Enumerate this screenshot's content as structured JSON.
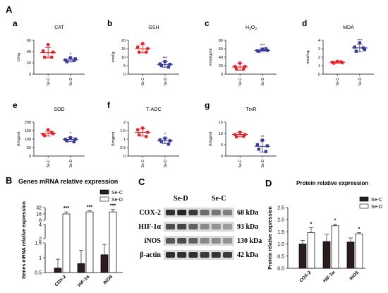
{
  "panel_letters": {
    "A": "A",
    "B": "B",
    "C": "C",
    "D": "D"
  },
  "chart_data": [
    {
      "letter": "a",
      "title": "CAT",
      "type": "scatter",
      "ylabel": "U/mg",
      "ylim": [
        0,
        60
      ],
      "yticks": [
        0,
        20,
        40,
        60
      ],
      "categories": [
        "Se-C",
        "Se-D"
      ],
      "series": [
        {
          "name": "Se-C",
          "color": "#e8242b",
          "points": [
            52,
            41,
            30,
            30,
            39
          ],
          "mean": 38,
          "sd": 9
        },
        {
          "name": "Se-D",
          "color": "#3a3a9a",
          "points": [
            29,
            25,
            22,
            24,
            27
          ],
          "mean": 25,
          "sd": 3.5
        }
      ],
      "significance": {
        "Se-D": "*"
      }
    },
    {
      "letter": "b",
      "title": "GSH",
      "type": "scatter",
      "ylabel": "umol/g",
      "ylim": [
        0,
        20
      ],
      "yticks": [
        0,
        5,
        10,
        15,
        20
      ],
      "categories": [
        "Se-C",
        "Se-D"
      ],
      "series": [
        {
          "name": "Se-C",
          "color": "#e8242b",
          "points": [
            18,
            16,
            13,
            13,
            15
          ],
          "mean": 15,
          "sd": 2.4
        },
        {
          "name": "Se-D",
          "color": "#3a3a9a",
          "points": [
            7.5,
            6,
            5,
            4.2,
            5.8
          ],
          "mean": 5.7,
          "sd": 1.6
        }
      ],
      "significance": {
        "Se-D": "***"
      }
    },
    {
      "letter": "c",
      "title": "H2O2",
      "type": "scatter",
      "ylabel": "mmol/gprot",
      "ylim": [
        0,
        80
      ],
      "yticks": [
        0,
        20,
        40,
        60,
        80
      ],
      "categories": [
        "Se-C",
        "Se-D"
      ],
      "series": [
        {
          "name": "Se-C",
          "color": "#e8242b",
          "points": [
            26,
            18,
            12,
            12,
            18
          ],
          "mean": 17,
          "sd": 8
        },
        {
          "name": "Se-D",
          "color": "#3a3a9a",
          "points": [
            59,
            55,
            54,
            60,
            56
          ],
          "mean": 56,
          "sd": 3
        }
      ],
      "significance": {
        "Se-D": "***"
      }
    },
    {
      "letter": "d",
      "title": "MDA",
      "type": "scatter",
      "ylabel": "nmol/mg",
      "ylim": [
        0,
        4
      ],
      "yticks": [
        0,
        1,
        2,
        3,
        4
      ],
      "categories": [
        "Se-C",
        "Se-D"
      ],
      "series": [
        {
          "name": "Se-C",
          "color": "#e8242b",
          "points": [
            1.5,
            1.4,
            1.3,
            1.45,
            1.35
          ],
          "mean": 1.4,
          "sd": 0.12
        },
        {
          "name": "Se-D",
          "color": "#3a3a9a",
          "points": [
            3.7,
            3.2,
            2.7,
            3.1,
            2.9
          ],
          "mean": 3.1,
          "sd": 0.45
        }
      ],
      "significance": {
        "Se-D": "***"
      }
    },
    {
      "letter": "e",
      "title": "SOD",
      "type": "scatter",
      "ylabel": "U/mgprot",
      "ylim": [
        0,
        200
      ],
      "yticks": [
        0,
        50,
        100,
        150,
        200
      ],
      "categories": [
        "Se-C",
        "Se-D"
      ],
      "series": [
        {
          "name": "Se-C",
          "color": "#e8242b",
          "points": [
            155,
            128,
            120,
            140,
            132
          ],
          "mean": 132,
          "sd": 14
        },
        {
          "name": "Se-D",
          "color": "#3a3a9a",
          "points": [
            108,
            98,
            90,
            84,
            100
          ],
          "mean": 98,
          "sd": 12
        }
      ],
      "significance": {
        "Se-D": "*"
      }
    },
    {
      "letter": "f",
      "title": "T-AOC",
      "type": "scatter",
      "ylabel": "U/mgprot",
      "ylim": [
        0.0,
        2.0
      ],
      "yticks": [
        0.0,
        0.5,
        1.0,
        1.5,
        2.0
      ],
      "categories": [
        "Se-C",
        "Se-D"
      ],
      "series": [
        {
          "name": "Se-C",
          "color": "#e8242b",
          "points": [
            1.65,
            1.55,
            1.25,
            1.15,
            1.4
          ],
          "mean": 1.4,
          "sd": 0.22
        },
        {
          "name": "Se-D",
          "color": "#3a3a9a",
          "points": [
            1.05,
            0.95,
            0.85,
            0.7,
            0.9
          ],
          "mean": 0.9,
          "sd": 0.16
        }
      ],
      "significance": {
        "Se-D": "*"
      }
    },
    {
      "letter": "g",
      "title": "TrxR",
      "type": "scatter",
      "ylabel": "U/mgprot",
      "ylim": [
        0,
        15
      ],
      "yticks": [
        0,
        5,
        10,
        15
      ],
      "categories": [
        "Se-C",
        "Se-D"
      ],
      "series": [
        {
          "name": "Se-C",
          "color": "#e8242b",
          "points": [
            10.5,
            9.5,
            8.5,
            8.7,
            9.5
          ],
          "mean": 9.5,
          "sd": 1
        },
        {
          "name": "Se-D",
          "color": "#3a3a9a",
          "points": [
            7,
            5,
            3,
            2,
            4.5
          ],
          "mean": 4.3,
          "sd": 2.5
        }
      ],
      "significance": {
        "Se-D": "**"
      }
    },
    {
      "letter": "B",
      "title": "Genes mRNA relative expression",
      "type": "bar",
      "ylabel": "Genes mRNA relative expression",
      "categories": [
        "COX-2",
        "HIF-1α",
        "iNOS"
      ],
      "y_axis": {
        "segments": [
          {
            "ticks": [
              0.5,
              1.0,
              1.5
            ]
          },
          {
            "ticks": [
              2,
              4
            ]
          },
          {
            "ticks": [
              8,
              16,
              32
            ]
          }
        ]
      },
      "series": [
        {
          "name": "Se-C",
          "color": "#2b1d1d",
          "values": [
            0.65,
            0.8,
            1.1
          ],
          "errors": [
            0.3,
            0.45,
            0.35
          ]
        },
        {
          "name": "Se-D",
          "color": "#ffffff",
          "values": [
            16,
            20,
            20
          ],
          "errors": [
            4,
            3,
            6
          ]
        }
      ],
      "significance": [
        "***",
        "***",
        "***"
      ],
      "legend": "top-right"
    },
    {
      "letter": "D",
      "title": "Protein relative expression",
      "type": "bar",
      "ylabel": "Protein relative expression",
      "categories": [
        "COX-2",
        "HIF-1α",
        "iNOS"
      ],
      "ylim": [
        0.0,
        2.5
      ],
      "yticks": [
        0.0,
        0.5,
        1.0,
        1.5,
        2.0,
        2.5
      ],
      "series": [
        {
          "name": "Se-C",
          "color": "#2b1d1d",
          "values": [
            1.0,
            1.1,
            1.08
          ],
          "errors": [
            0.15,
            0.3,
            0.17
          ]
        },
        {
          "name": "Se-D",
          "color": "#ffffff",
          "values": [
            1.47,
            1.75,
            1.42
          ],
          "errors": [
            0.2,
            0.06,
            0.05
          ]
        }
      ],
      "significance": [
        "*",
        "*",
        "*"
      ],
      "legend": "top-right"
    }
  ],
  "western_blot": {
    "group_labels": [
      "Se-D",
      "Se-C"
    ],
    "rows": [
      {
        "protein": "COX-2",
        "size": "68 kDa"
      },
      {
        "protein": "HIF-1α",
        "size": "93 kDa"
      },
      {
        "protein": "iNOS",
        "size": "130 kDa"
      },
      {
        "protein": "β-actin",
        "size": "42 kDa"
      }
    ]
  }
}
